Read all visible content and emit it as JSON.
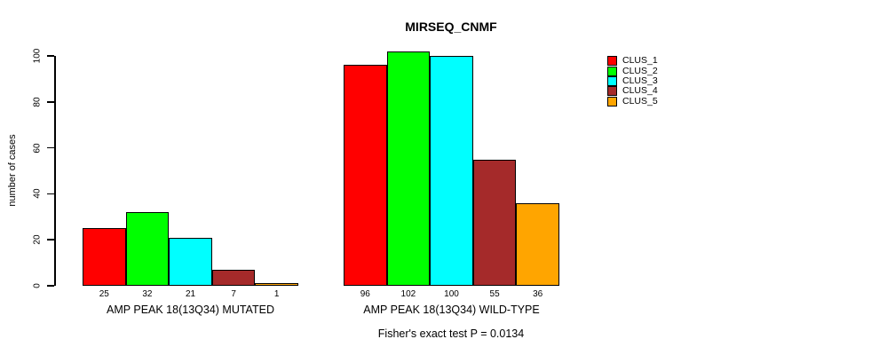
{
  "title": "MIRSEQ_CNMF",
  "annotation": "Fisher's exact test P = 0.0134",
  "y_axis": {
    "label": "number of cases",
    "ticks": [
      0,
      20,
      40,
      60,
      80,
      100
    ]
  },
  "legend": {
    "items": [
      {
        "label": "CLUS_1",
        "color": "#FF0000"
      },
      {
        "label": "CLUS_2",
        "color": "#00FF00"
      },
      {
        "label": "CLUS_3",
        "color": "#00FFFF"
      },
      {
        "label": "CLUS_4",
        "color": "#A52A2A"
      },
      {
        "label": "CLUS_5",
        "color": "#FFA500"
      }
    ]
  },
  "chart_data": {
    "type": "bar",
    "title": "MIRSEQ_CNMF",
    "xlabel": "",
    "ylabel": "number of cases",
    "ylim": [
      0,
      100
    ],
    "yticks": [
      0,
      20,
      40,
      60,
      80,
      100
    ],
    "grid": false,
    "legend_position": "right",
    "categories": [
      "AMP PEAK 18(13Q34) MUTATED",
      "AMP PEAK 18(13Q34) WILD-TYPE"
    ],
    "series": [
      {
        "name": "CLUS_1",
        "color": "#FF0000",
        "values": [
          25,
          96
        ]
      },
      {
        "name": "CLUS_2",
        "color": "#00FF00",
        "values": [
          32,
          102
        ]
      },
      {
        "name": "CLUS_3",
        "color": "#00FFFF",
        "values": [
          21,
          100
        ]
      },
      {
        "name": "CLUS_4",
        "color": "#A52A2A",
        "values": [
          7,
          55
        ]
      },
      {
        "name": "CLUS_5",
        "color": "#FFA500",
        "values": [
          1,
          36
        ]
      }
    ],
    "bar_value_labels_shown": true,
    "annotation": "Fisher's exact test P = 0.0134"
  }
}
